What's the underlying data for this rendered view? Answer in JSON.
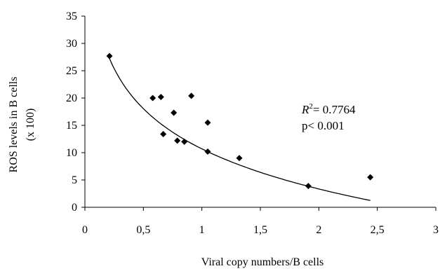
{
  "chart_data": {
    "type": "scatter",
    "title": "",
    "xlabel": "Viral copy numbers/B cells",
    "ylabel_lines": [
      "ROS levels in B cells",
      "(x 100)"
    ],
    "xlim": [
      0,
      3
    ],
    "ylim": [
      0,
      35
    ],
    "x_ticks": [
      0,
      0.5,
      1,
      1.5,
      2,
      2.5,
      3
    ],
    "x_tick_labels": [
      "0",
      "0,5",
      "1",
      "1,5",
      "2",
      "2,5",
      "3"
    ],
    "y_ticks": [
      0,
      5,
      10,
      15,
      20,
      25,
      30,
      35
    ],
    "y_tick_labels": [
      "0",
      "5",
      "10",
      "15",
      "20",
      "25",
      "30",
      "35"
    ],
    "grid": false,
    "marker": "diamond",
    "marker_color": "#000000",
    "points": [
      {
        "x": 0.21,
        "y": 27.7
      },
      {
        "x": 0.58,
        "y": 20.0
      },
      {
        "x": 0.65,
        "y": 20.2
      },
      {
        "x": 0.67,
        "y": 13.4
      },
      {
        "x": 0.76,
        "y": 17.3
      },
      {
        "x": 0.79,
        "y": 12.2
      },
      {
        "x": 0.85,
        "y": 12.0
      },
      {
        "x": 0.91,
        "y": 20.4
      },
      {
        "x": 1.05,
        "y": 15.5
      },
      {
        "x": 1.05,
        "y": 10.2
      },
      {
        "x": 1.32,
        "y": 9.0
      },
      {
        "x": 1.91,
        "y": 3.9
      },
      {
        "x": 2.44,
        "y": 5.5
      }
    ],
    "trendline": {
      "type": "logarithmic",
      "a": 10.7,
      "b": -10.6,
      "x_range": [
        0.21,
        2.44
      ]
    },
    "annotation": {
      "r_label": "R",
      "r_sup": "2",
      "r_value": "= 0.7764",
      "p_text": "p< 0.001"
    }
  }
}
